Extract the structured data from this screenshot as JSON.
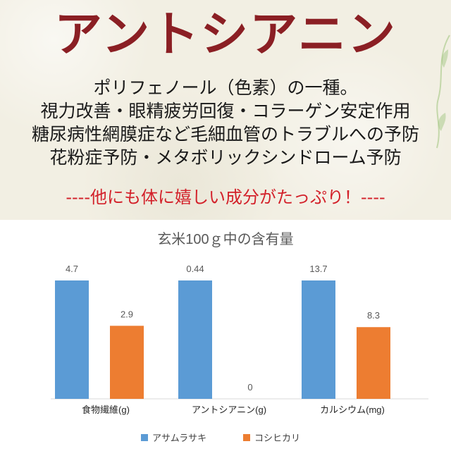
{
  "header": {
    "title": "アントシアニン",
    "lines": [
      "ポリフェノール（色素）の一種。",
      "視力改善・眼精疲労回復・コラーゲン安定作用",
      "糖尿病性網膜症など毛細血管のトラブルへの予防",
      "花粉症予防・メタボリックシンドローム予防"
    ],
    "tagline": "----他にも体に嬉しい成分がたっぷり！----"
  },
  "colors": {
    "title": "#8b1f24",
    "tagline": "#d3212a",
    "series1": "#5b9bd5",
    "series2": "#ed7d31"
  },
  "chart_data": {
    "type": "bar",
    "title": "玄米100ｇ中の含有量",
    "categories": [
      "食物繊維(g)",
      "アントシアニン(g)",
      "カルシウム(mg)"
    ],
    "series": [
      {
        "name": "アサムラサキ",
        "values": [
          4.7,
          0.44,
          13.7
        ],
        "labels": [
          "4.7",
          "0.44",
          "13.7"
        ]
      },
      {
        "name": "コシヒカリ",
        "values": [
          2.9,
          0,
          8.3
        ],
        "labels": [
          "2.9",
          "0",
          "8.3"
        ]
      }
    ],
    "grid": false,
    "legend": "bottom",
    "axis_note": "each category group is scaled independently (bar heights relative within the group)"
  }
}
